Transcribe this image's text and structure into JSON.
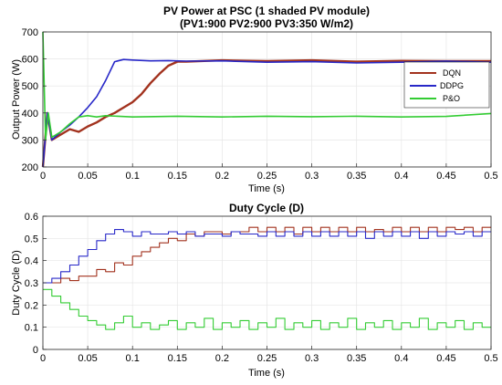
{
  "chart_data": [
    {
      "type": "line",
      "title": "PV Power at PSC (1 shaded PV module)",
      "subtitle": "(PV1:900 PV2:900 PV3:350 W/m2)",
      "xlabel": "Time (s)",
      "ylabel": "Output Power (W)",
      "xlim": [
        0,
        0.5
      ],
      "ylim": [
        200,
        700
      ],
      "xticks": [
        "0",
        "0.05",
        "0.1",
        "0.15",
        "0.2",
        "0.25",
        "0.3",
        "0.35",
        "0.4",
        "0.45",
        "0.5"
      ],
      "yticks": [
        "200",
        "300",
        "400",
        "500",
        "600",
        "700"
      ],
      "grid": true,
      "legend_position": "right",
      "series": [
        {
          "name": "DQN",
          "color": "#A2321E",
          "x": [
            0,
            0.005,
            0.01,
            0.02,
            0.03,
            0.04,
            0.05,
            0.06,
            0.07,
            0.08,
            0.09,
            0.1,
            0.11,
            0.12,
            0.13,
            0.14,
            0.15,
            0.16,
            0.2,
            0.25,
            0.3,
            0.35,
            0.4,
            0.45,
            0.5
          ],
          "y": [
            200,
            400,
            300,
            320,
            340,
            330,
            350,
            365,
            385,
            400,
            420,
            440,
            470,
            510,
            545,
            575,
            590,
            590,
            595,
            592,
            595,
            590,
            593,
            592,
            592
          ]
        },
        {
          "name": "DDPG",
          "color": "#2828C8",
          "x": [
            0,
            0.005,
            0.01,
            0.02,
            0.03,
            0.04,
            0.05,
            0.06,
            0.07,
            0.08,
            0.09,
            0.1,
            0.12,
            0.14,
            0.16,
            0.2,
            0.25,
            0.3,
            0.35,
            0.4,
            0.45,
            0.5
          ],
          "y": [
            200,
            400,
            300,
            330,
            355,
            385,
            420,
            460,
            520,
            590,
            598,
            596,
            593,
            594,
            592,
            593,
            588,
            590,
            585,
            588,
            592,
            588
          ]
        },
        {
          "name": "P&O",
          "color": "#33CC33",
          "x": [
            0,
            0.003,
            0.006,
            0.01,
            0.02,
            0.03,
            0.04,
            0.05,
            0.06,
            0.07,
            0.1,
            0.15,
            0.2,
            0.25,
            0.3,
            0.35,
            0.4,
            0.45,
            0.5
          ],
          "y": [
            700,
            300,
            400,
            310,
            330,
            360,
            385,
            390,
            385,
            390,
            385,
            388,
            385,
            388,
            386,
            388,
            385,
            387,
            398
          ]
        }
      ]
    },
    {
      "type": "line",
      "title": "Duty Cycle (D)",
      "xlabel": "Time (s)",
      "ylabel": "Duty Cycle (D)",
      "xlim": [
        0,
        0.5
      ],
      "ylim": [
        0,
        0.6
      ],
      "xticks": [
        "0",
        "0.05",
        "0.1",
        "0.15",
        "0.2",
        "0.25",
        "0.3",
        "0.35",
        "0.4",
        "0.45",
        "0.5"
      ],
      "yticks": [
        "0",
        "0.1",
        "0.2",
        "0.3",
        "0.4",
        "0.5",
        "0.6"
      ],
      "grid": true,
      "series": [
        {
          "name": "DQN",
          "color": "#A2321E",
          "x": [
            0,
            0.01,
            0.02,
            0.03,
            0.04,
            0.05,
            0.06,
            0.07,
            0.08,
            0.09,
            0.1,
            0.11,
            0.12,
            0.13,
            0.14,
            0.15,
            0.16,
            0.17,
            0.18,
            0.19,
            0.2,
            0.21,
            0.22,
            0.23,
            0.24,
            0.25,
            0.26,
            0.27,
            0.28,
            0.29,
            0.3,
            0.31,
            0.32,
            0.33,
            0.34,
            0.35,
            0.36,
            0.37,
            0.38,
            0.39,
            0.4,
            0.41,
            0.42,
            0.43,
            0.44,
            0.45,
            0.46,
            0.47,
            0.48,
            0.49
          ],
          "y": [
            0.3,
            0.3,
            0.32,
            0.31,
            0.33,
            0.33,
            0.36,
            0.35,
            0.39,
            0.38,
            0.42,
            0.44,
            0.46,
            0.48,
            0.5,
            0.49,
            0.52,
            0.51,
            0.53,
            0.53,
            0.52,
            0.53,
            0.53,
            0.55,
            0.53,
            0.55,
            0.53,
            0.55,
            0.52,
            0.55,
            0.53,
            0.55,
            0.53,
            0.55,
            0.53,
            0.55,
            0.53,
            0.54,
            0.53,
            0.55,
            0.53,
            0.55,
            0.53,
            0.55,
            0.53,
            0.55,
            0.54,
            0.55,
            0.53,
            0.55
          ]
        },
        {
          "name": "DDPG",
          "color": "#2828C8",
          "x": [
            0,
            0.01,
            0.02,
            0.03,
            0.04,
            0.05,
            0.06,
            0.07,
            0.08,
            0.09,
            0.1,
            0.11,
            0.12,
            0.13,
            0.14,
            0.15,
            0.16,
            0.17,
            0.18,
            0.19,
            0.2,
            0.21,
            0.22,
            0.23,
            0.24,
            0.25,
            0.26,
            0.27,
            0.28,
            0.29,
            0.3,
            0.31,
            0.32,
            0.33,
            0.34,
            0.35,
            0.36,
            0.37,
            0.38,
            0.39,
            0.4,
            0.41,
            0.42,
            0.43,
            0.44,
            0.45,
            0.46,
            0.47,
            0.48,
            0.49
          ],
          "y": [
            0.3,
            0.32,
            0.35,
            0.38,
            0.42,
            0.45,
            0.49,
            0.52,
            0.54,
            0.53,
            0.51,
            0.53,
            0.52,
            0.52,
            0.53,
            0.52,
            0.53,
            0.51,
            0.52,
            0.52,
            0.51,
            0.53,
            0.52,
            0.52,
            0.51,
            0.53,
            0.51,
            0.53,
            0.51,
            0.53,
            0.51,
            0.53,
            0.51,
            0.53,
            0.51,
            0.53,
            0.5,
            0.53,
            0.51,
            0.53,
            0.51,
            0.53,
            0.5,
            0.53,
            0.51,
            0.53,
            0.52,
            0.53,
            0.51,
            0.53
          ]
        },
        {
          "name": "P&O",
          "color": "#33CC33",
          "x": [
            0,
            0.01,
            0.02,
            0.03,
            0.04,
            0.05,
            0.06,
            0.07,
            0.08,
            0.09,
            0.1,
            0.11,
            0.12,
            0.13,
            0.14,
            0.15,
            0.16,
            0.17,
            0.18,
            0.19,
            0.2,
            0.21,
            0.22,
            0.23,
            0.24,
            0.25,
            0.26,
            0.27,
            0.28,
            0.29,
            0.3,
            0.31,
            0.32,
            0.33,
            0.34,
            0.35,
            0.36,
            0.37,
            0.38,
            0.39,
            0.4,
            0.41,
            0.42,
            0.43,
            0.44,
            0.45,
            0.46,
            0.47,
            0.48,
            0.49
          ],
          "y": [
            0.27,
            0.24,
            0.21,
            0.18,
            0.15,
            0.13,
            0.11,
            0.09,
            0.12,
            0.15,
            0.1,
            0.12,
            0.09,
            0.11,
            0.13,
            0.09,
            0.12,
            0.1,
            0.14,
            0.09,
            0.12,
            0.1,
            0.13,
            0.09,
            0.12,
            0.1,
            0.14,
            0.09,
            0.12,
            0.1,
            0.13,
            0.09,
            0.12,
            0.1,
            0.14,
            0.09,
            0.12,
            0.1,
            0.13,
            0.09,
            0.12,
            0.1,
            0.14,
            0.09,
            0.12,
            0.1,
            0.13,
            0.09,
            0.12,
            0.1
          ]
        }
      ]
    }
  ]
}
